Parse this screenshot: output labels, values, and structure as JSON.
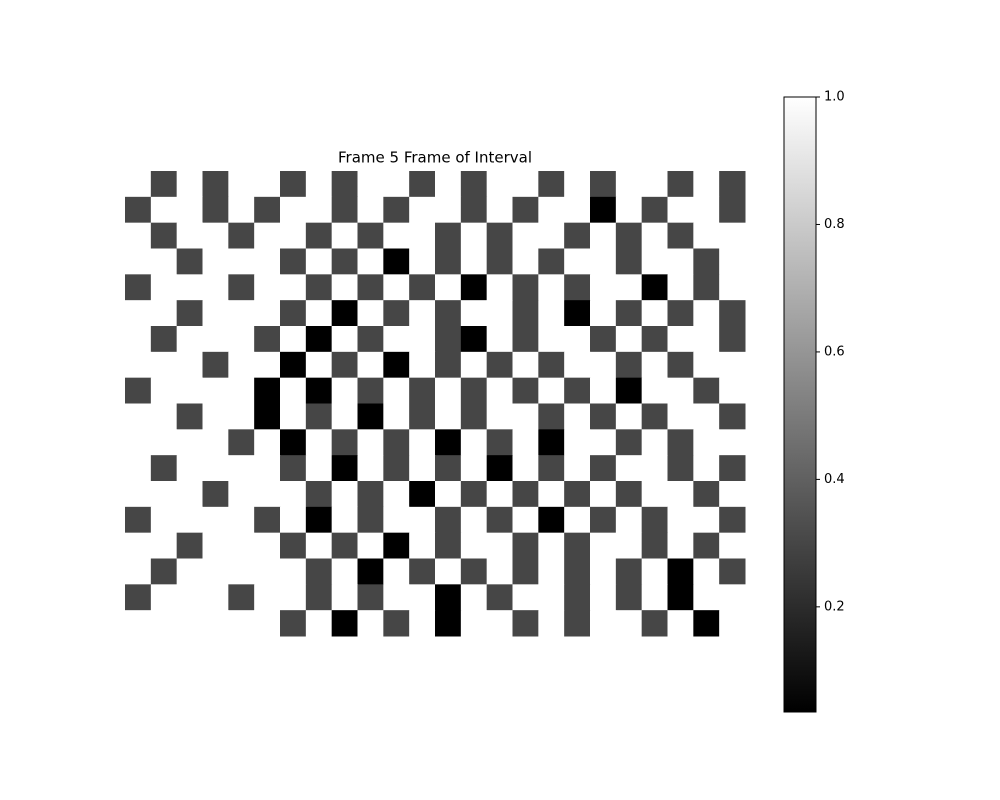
{
  "chart_data": {
    "type": "image",
    "title": "Frame 5 Frame of Interval",
    "clim": [
      0.035,
      1.0
    ],
    "colorbar_ticks": [
      0.2,
      0.4,
      0.6,
      0.8,
      {
        "value": 1.0,
        "label": "1.0"
      }
    ],
    "values": [
      [
        1,
        0.3,
        1,
        0.3,
        1,
        1,
        0.3,
        1,
        0.3,
        1,
        1,
        0.3,
        1,
        0.3,
        1,
        1,
        0.3,
        1,
        0.3,
        1,
        1,
        0.3,
        1,
        0.3
      ],
      [
        0.3,
        1,
        1,
        0.3,
        1,
        0.3,
        1,
        1,
        0.3,
        1,
        0.3,
        1,
        1,
        0.3,
        1,
        0.3,
        1,
        1,
        0.035,
        1,
        0.3,
        1,
        1,
        0.3
      ],
      [
        1,
        0.3,
        1,
        1,
        0.3,
        1,
        1,
        0.3,
        1,
        0.3,
        1,
        1,
        0.3,
        1,
        0.3,
        1,
        1,
        0.3,
        1,
        0.3,
        1,
        0.3,
        1,
        1
      ],
      [
        1,
        1,
        0.3,
        1,
        1,
        1,
        0.3,
        1,
        0.3,
        1,
        0.035,
        1,
        0.3,
        1,
        0.3,
        1,
        0.3,
        1,
        1,
        0.3,
        1,
        1,
        0.3,
        1
      ],
      [
        0.3,
        1,
        1,
        1,
        0.3,
        1,
        1,
        0.3,
        1,
        0.3,
        1,
        0.3,
        1,
        0.035,
        1,
        0.3,
        1,
        0.3,
        1,
        1,
        0.035,
        1,
        0.3,
        1
      ],
      [
        1,
        1,
        0.3,
        1,
        1,
        1,
        0.3,
        1,
        0.035,
        1,
        0.3,
        1,
        0.3,
        1,
        1,
        0.3,
        1,
        0.035,
        1,
        0.3,
        1,
        0.3,
        1,
        0.3
      ],
      [
        1,
        0.3,
        1,
        1,
        1,
        0.3,
        1,
        0.035,
        1,
        0.3,
        1,
        1,
        0.3,
        0.035,
        1,
        0.3,
        1,
        1,
        0.3,
        1,
        0.3,
        1,
        1,
        0.3
      ],
      [
        1,
        1,
        1,
        0.3,
        1,
        1,
        0.035,
        1,
        0.3,
        1,
        0.035,
        1,
        0.3,
        1,
        0.3,
        1,
        0.3,
        1,
        1,
        0.3,
        1,
        0.3,
        1,
        1
      ],
      [
        0.3,
        1,
        1,
        1,
        1,
        0.035,
        1,
        0.035,
        1,
        0.3,
        1,
        0.3,
        1,
        0.3,
        1,
        0.3,
        1,
        0.3,
        1,
        0.035,
        1,
        1,
        0.3,
        1
      ],
      [
        1,
        1,
        0.3,
        1,
        1,
        0.035,
        1,
        0.3,
        1,
        0.035,
        1,
        0.3,
        1,
        0.3,
        1,
        1,
        0.3,
        1,
        0.3,
        1,
        0.3,
        1,
        1,
        0.3
      ],
      [
        1,
        1,
        1,
        1,
        0.3,
        1,
        0.035,
        1,
        0.3,
        1,
        0.3,
        1,
        0.035,
        1,
        0.3,
        1,
        0.035,
        1,
        1,
        0.3,
        1,
        0.3,
        1,
        1
      ],
      [
        1,
        0.3,
        1,
        1,
        1,
        1,
        0.3,
        1,
        0.035,
        1,
        0.3,
        1,
        0.3,
        1,
        0.035,
        1,
        0.3,
        1,
        0.3,
        1,
        1,
        0.3,
        1,
        0.3
      ],
      [
        1,
        1,
        1,
        0.3,
        1,
        1,
        1,
        0.3,
        1,
        0.3,
        1,
        0.035,
        1,
        0.3,
        1,
        0.3,
        1,
        0.3,
        1,
        0.3,
        1,
        1,
        0.3,
        1
      ],
      [
        0.3,
        1,
        1,
        1,
        1,
        0.3,
        1,
        0.035,
        1,
        0.3,
        1,
        1,
        0.3,
        1,
        0.3,
        1,
        0.035,
        1,
        0.3,
        1,
        0.3,
        1,
        1,
        0.3
      ],
      [
        1,
        1,
        0.3,
        1,
        1,
        1,
        0.3,
        1,
        0.3,
        1,
        0.035,
        1,
        0.3,
        1,
        1,
        0.3,
        1,
        0.3,
        1,
        1,
        0.3,
        1,
        0.3,
        1
      ],
      [
        1,
        0.3,
        1,
        1,
        1,
        1,
        1,
        0.3,
        1,
        0.035,
        1,
        0.3,
        1,
        0.3,
        1,
        0.3,
        1,
        0.3,
        1,
        0.3,
        1,
        0.035,
        1,
        0.3
      ],
      [
        0.3,
        1,
        1,
        1,
        0.3,
        1,
        1,
        0.3,
        1,
        0.3,
        1,
        1,
        0.035,
        1,
        0.3,
        1,
        1,
        0.3,
        1,
        0.3,
        1,
        0.035,
        1,
        1
      ],
      [
        1,
        1,
        1,
        1,
        1,
        1,
        0.3,
        1,
        0.035,
        1,
        0.3,
        1,
        0.035,
        1,
        1,
        0.3,
        1,
        0.3,
        1,
        1,
        0.3,
        1,
        0.035,
        1
      ]
    ]
  }
}
